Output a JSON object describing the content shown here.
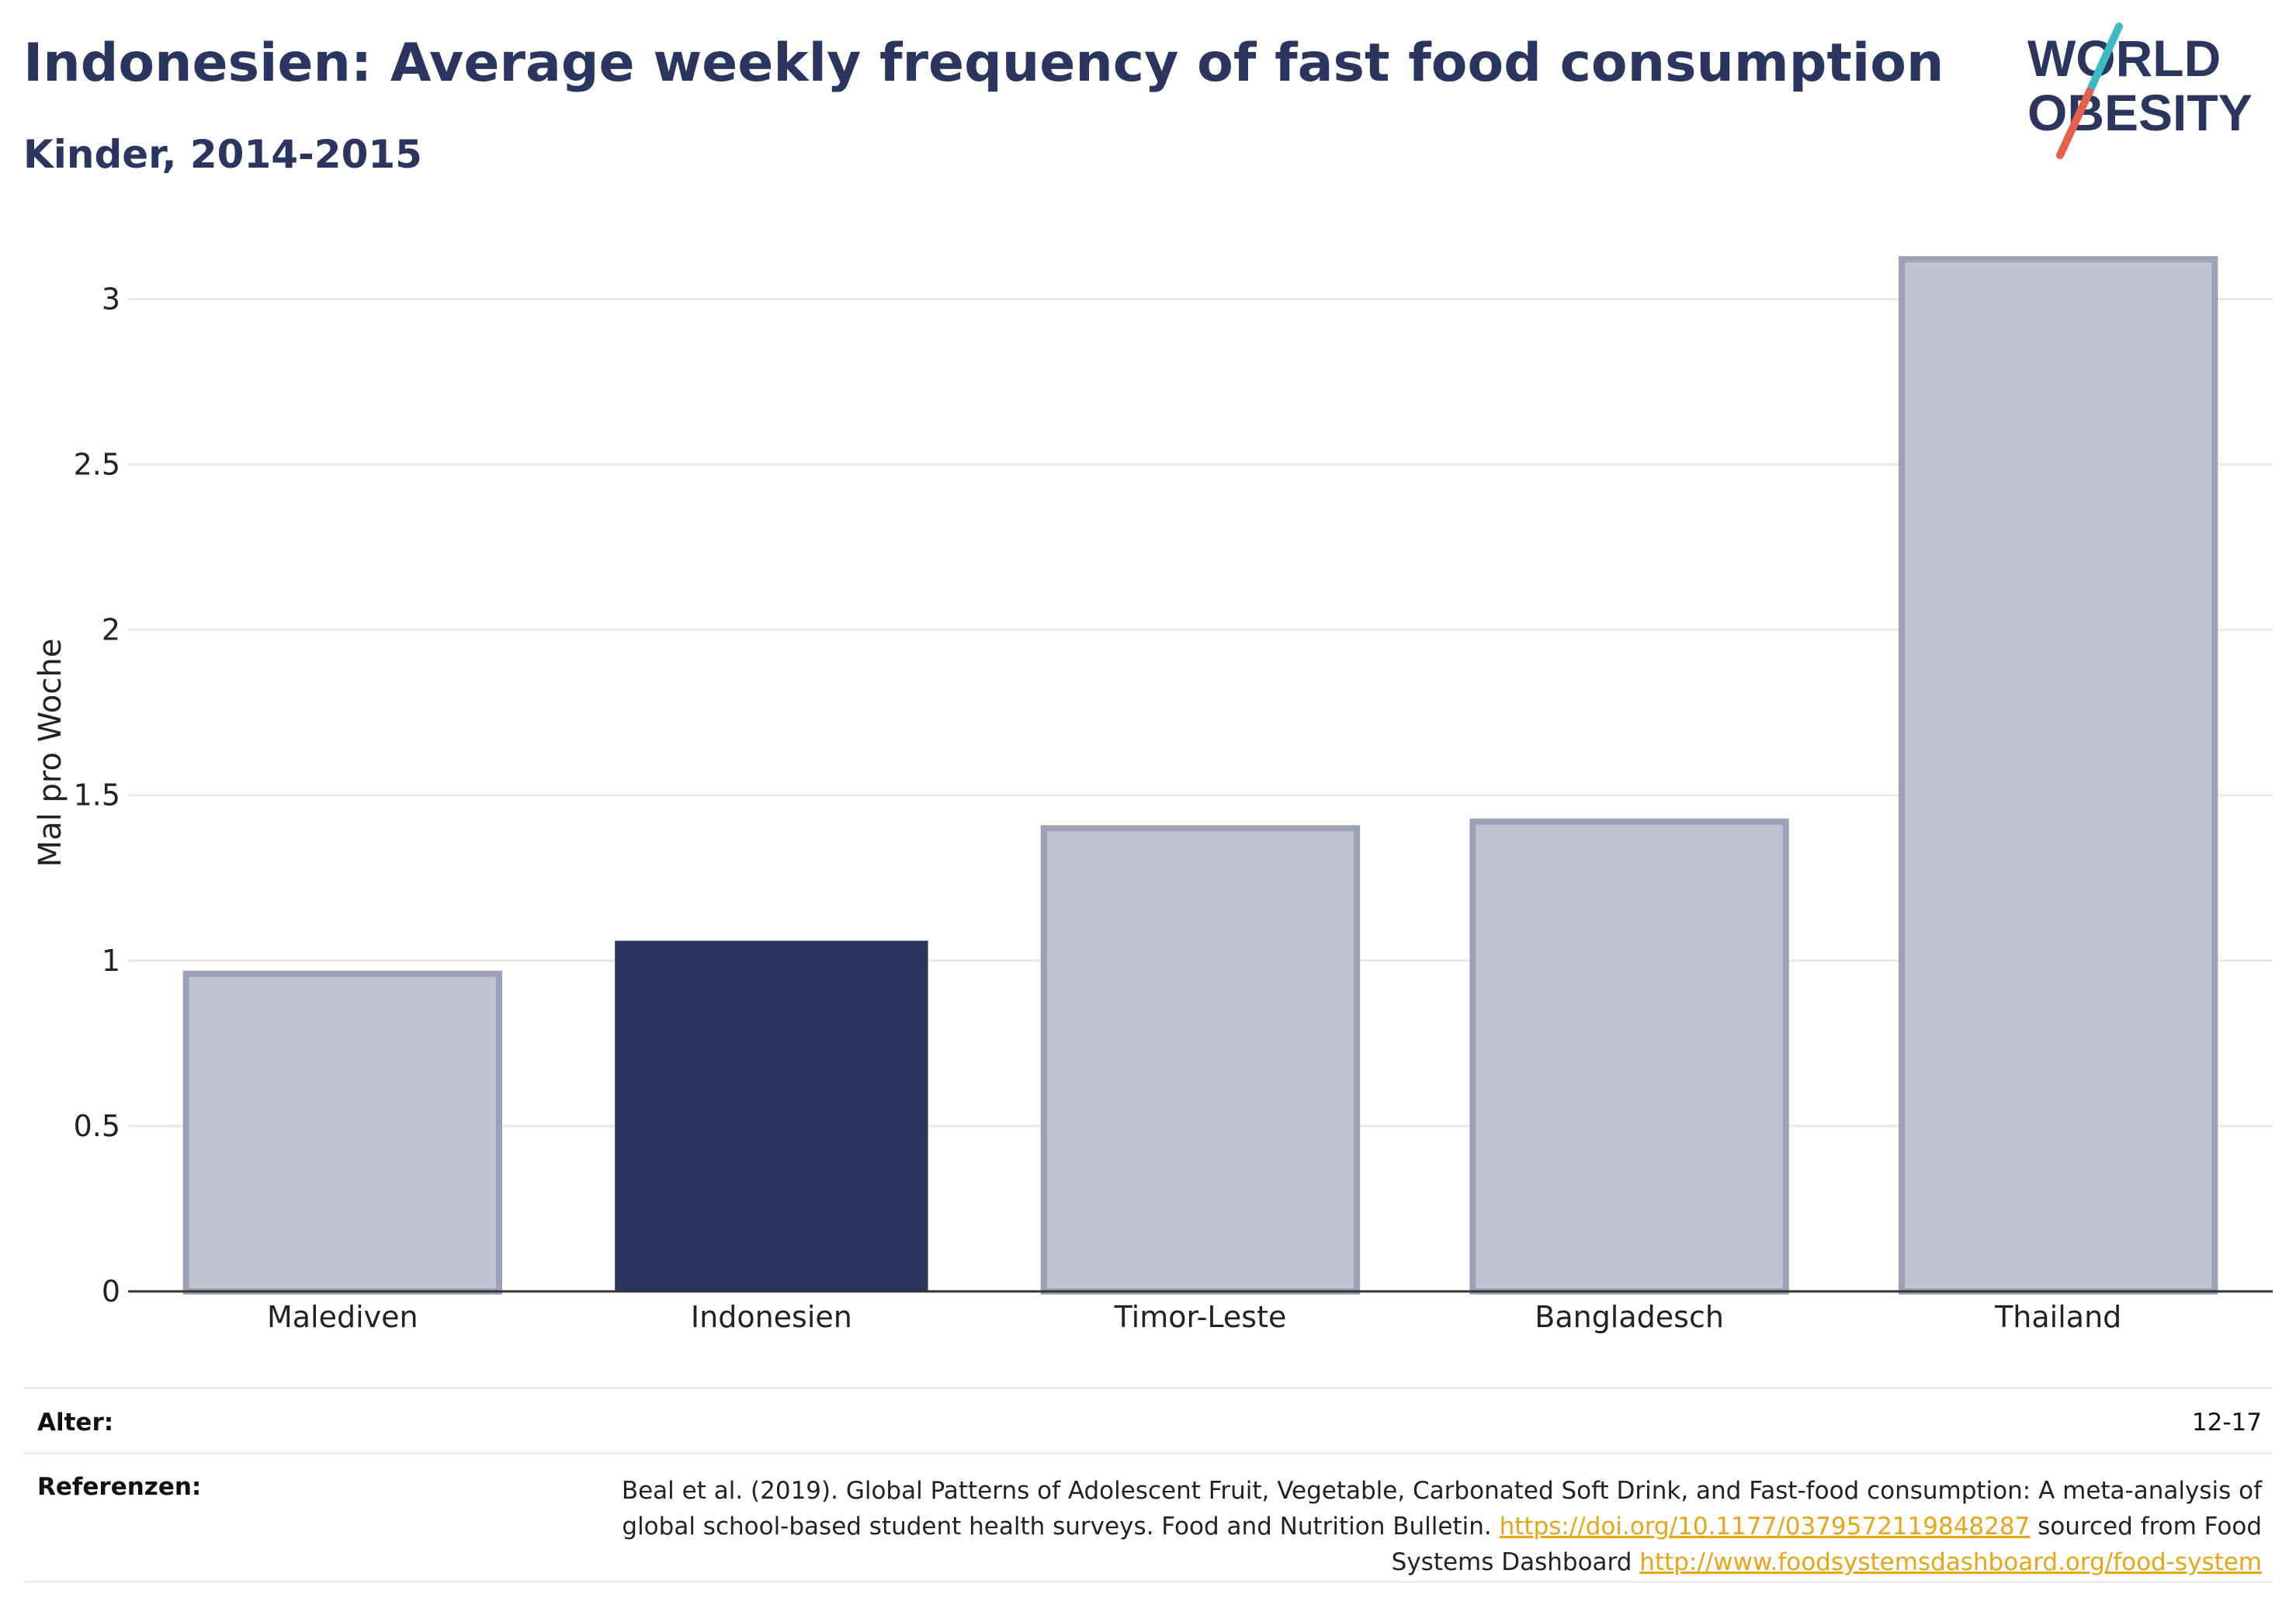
{
  "header": {
    "title": "Indonesien: Average weekly frequency of fast food consumption",
    "subtitle": "Kinder, 2014-2015"
  },
  "logo": {
    "line1": "WORLD",
    "line2": "OBESITY",
    "colors": {
      "text": "#2b3660",
      "slash_top": "#3bbcc2",
      "slash_bottom": "#e8604c"
    }
  },
  "chart_data": {
    "type": "bar",
    "categories": [
      "Malediven",
      "Indonesien",
      "Timor-Leste",
      "Bangladesch",
      "Thailand"
    ],
    "values": [
      0.96,
      1.06,
      1.4,
      1.42,
      3.12
    ],
    "highlight": "Indonesien",
    "ylabel": "Mal pro Woche",
    "xlabel": "",
    "ylim": [
      0,
      3.2
    ],
    "yticks": [
      0,
      0.5,
      1,
      1.5,
      2,
      2.5,
      3
    ],
    "ytick_labels": [
      "0",
      "0.5",
      "1",
      "1.5",
      "2",
      "2.5",
      "3"
    ],
    "grid": true,
    "colors": {
      "highlight": "#2b3660",
      "other_fill": "#bfc2cf",
      "other_stroke": "#9ca1b8"
    }
  },
  "footer": {
    "age_label": "Alter:",
    "age_value": "12-17",
    "refs_label": "Referenzen:",
    "refs_text1": "Beal et al. (2019). Global Patterns of Adolescent Fruit, Vegetable, Carbonated Soft Drink, and Fast-food consumption: A meta-analysis of global school-based student health surveys. Food and Nutrition Bulletin. ",
    "refs_link1": "https://doi.org/10.1177/0379572119848287",
    "refs_text2": " sourced from Food Systems Dashboard ",
    "refs_link2": "http://www.foodsystemsdashboard.org/food-system"
  }
}
